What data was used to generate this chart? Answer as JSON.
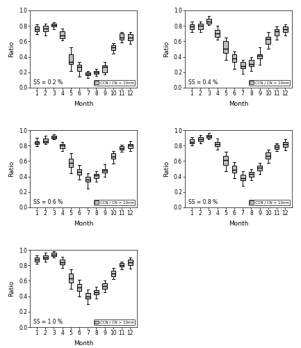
{
  "ss_labels": [
    "SS = 0.2 %",
    "SS = 0.4 %",
    "SS = 0.6 %",
    "SS = 0.8 %",
    "SS = 1.0 %"
  ],
  "box_data": {
    "0.2": {
      "whislo": [
        0.69,
        0.68,
        0.76,
        0.61,
        0.22,
        0.14,
        0.13,
        0.15,
        0.17,
        0.44,
        0.59,
        0.57
      ],
      "q1": [
        0.73,
        0.73,
        0.79,
        0.64,
        0.31,
        0.22,
        0.16,
        0.18,
        0.2,
        0.49,
        0.62,
        0.61
      ],
      "med": [
        0.76,
        0.77,
        0.81,
        0.68,
        0.33,
        0.27,
        0.18,
        0.2,
        0.27,
        0.52,
        0.65,
        0.65
      ],
      "q3": [
        0.79,
        0.8,
        0.83,
        0.73,
        0.43,
        0.3,
        0.2,
        0.22,
        0.29,
        0.55,
        0.7,
        0.69
      ],
      "whishi": [
        0.82,
        0.83,
        0.85,
        0.77,
        0.52,
        0.33,
        0.22,
        0.24,
        0.33,
        0.58,
        0.72,
        0.72
      ]
    },
    "0.4": {
      "whislo": [
        0.72,
        0.72,
        0.81,
        0.62,
        0.36,
        0.24,
        0.18,
        0.22,
        0.3,
        0.5,
        0.62,
        0.68
      ],
      "q1": [
        0.76,
        0.76,
        0.83,
        0.66,
        0.45,
        0.33,
        0.25,
        0.28,
        0.38,
        0.57,
        0.68,
        0.72
      ],
      "med": [
        0.79,
        0.8,
        0.86,
        0.7,
        0.5,
        0.38,
        0.28,
        0.31,
        0.41,
        0.63,
        0.73,
        0.76
      ],
      "q3": [
        0.82,
        0.83,
        0.89,
        0.75,
        0.6,
        0.43,
        0.33,
        0.36,
        0.43,
        0.66,
        0.76,
        0.79
      ],
      "whishi": [
        0.86,
        0.86,
        0.93,
        0.8,
        0.65,
        0.47,
        0.36,
        0.4,
        0.52,
        0.72,
        0.79,
        0.82
      ]
    },
    "0.6": {
      "whislo": [
        0.79,
        0.82,
        0.88,
        0.73,
        0.44,
        0.36,
        0.24,
        0.33,
        0.4,
        0.57,
        0.72,
        0.73
      ],
      "q1": [
        0.82,
        0.84,
        0.89,
        0.77,
        0.52,
        0.42,
        0.33,
        0.38,
        0.45,
        0.63,
        0.75,
        0.77
      ],
      "med": [
        0.84,
        0.86,
        0.91,
        0.8,
        0.58,
        0.46,
        0.36,
        0.41,
        0.48,
        0.66,
        0.77,
        0.8
      ],
      "q3": [
        0.86,
        0.89,
        0.93,
        0.82,
        0.63,
        0.5,
        0.4,
        0.43,
        0.5,
        0.7,
        0.79,
        0.82
      ],
      "whishi": [
        0.9,
        0.93,
        0.95,
        0.85,
        0.7,
        0.55,
        0.44,
        0.47,
        0.56,
        0.73,
        0.81,
        0.86
      ]
    },
    "0.8": {
      "whislo": [
        0.8,
        0.83,
        0.88,
        0.75,
        0.47,
        0.38,
        0.28,
        0.35,
        0.43,
        0.58,
        0.73,
        0.74
      ],
      "q1": [
        0.83,
        0.86,
        0.9,
        0.79,
        0.55,
        0.45,
        0.35,
        0.4,
        0.48,
        0.63,
        0.76,
        0.78
      ],
      "med": [
        0.85,
        0.88,
        0.92,
        0.82,
        0.61,
        0.49,
        0.38,
        0.43,
        0.51,
        0.67,
        0.78,
        0.82
      ],
      "q3": [
        0.88,
        0.91,
        0.94,
        0.85,
        0.67,
        0.54,
        0.42,
        0.46,
        0.54,
        0.71,
        0.81,
        0.85
      ],
      "whishi": [
        0.91,
        0.94,
        0.96,
        0.89,
        0.72,
        0.59,
        0.47,
        0.5,
        0.58,
        0.75,
        0.83,
        0.88
      ]
    },
    "1.0": {
      "whislo": [
        0.82,
        0.85,
        0.9,
        0.77,
        0.5,
        0.4,
        0.3,
        0.37,
        0.45,
        0.62,
        0.75,
        0.76
      ],
      "q1": [
        0.85,
        0.88,
        0.92,
        0.81,
        0.58,
        0.47,
        0.37,
        0.42,
        0.5,
        0.66,
        0.78,
        0.8
      ],
      "med": [
        0.87,
        0.9,
        0.94,
        0.84,
        0.63,
        0.51,
        0.4,
        0.45,
        0.53,
        0.69,
        0.8,
        0.84
      ],
      "q3": [
        0.9,
        0.93,
        0.96,
        0.87,
        0.69,
        0.56,
        0.44,
        0.48,
        0.57,
        0.73,
        0.83,
        0.87
      ],
      "whishi": [
        0.93,
        0.96,
        0.98,
        0.91,
        0.75,
        0.61,
        0.49,
        0.52,
        0.6,
        0.77,
        0.85,
        0.9
      ]
    }
  },
  "box_color": "#c0c0c0",
  "median_color": "#000000",
  "whisker_color": "#000000",
  "ylabel": "Ratio",
  "xlabel": "Month",
  "ylim": [
    0.0,
    1.0
  ],
  "yticks": [
    0.0,
    0.2,
    0.4,
    0.6,
    0.8,
    1.0
  ],
  "legend_label": "CCN / CN > 10nm",
  "background_color": "#ffffff"
}
